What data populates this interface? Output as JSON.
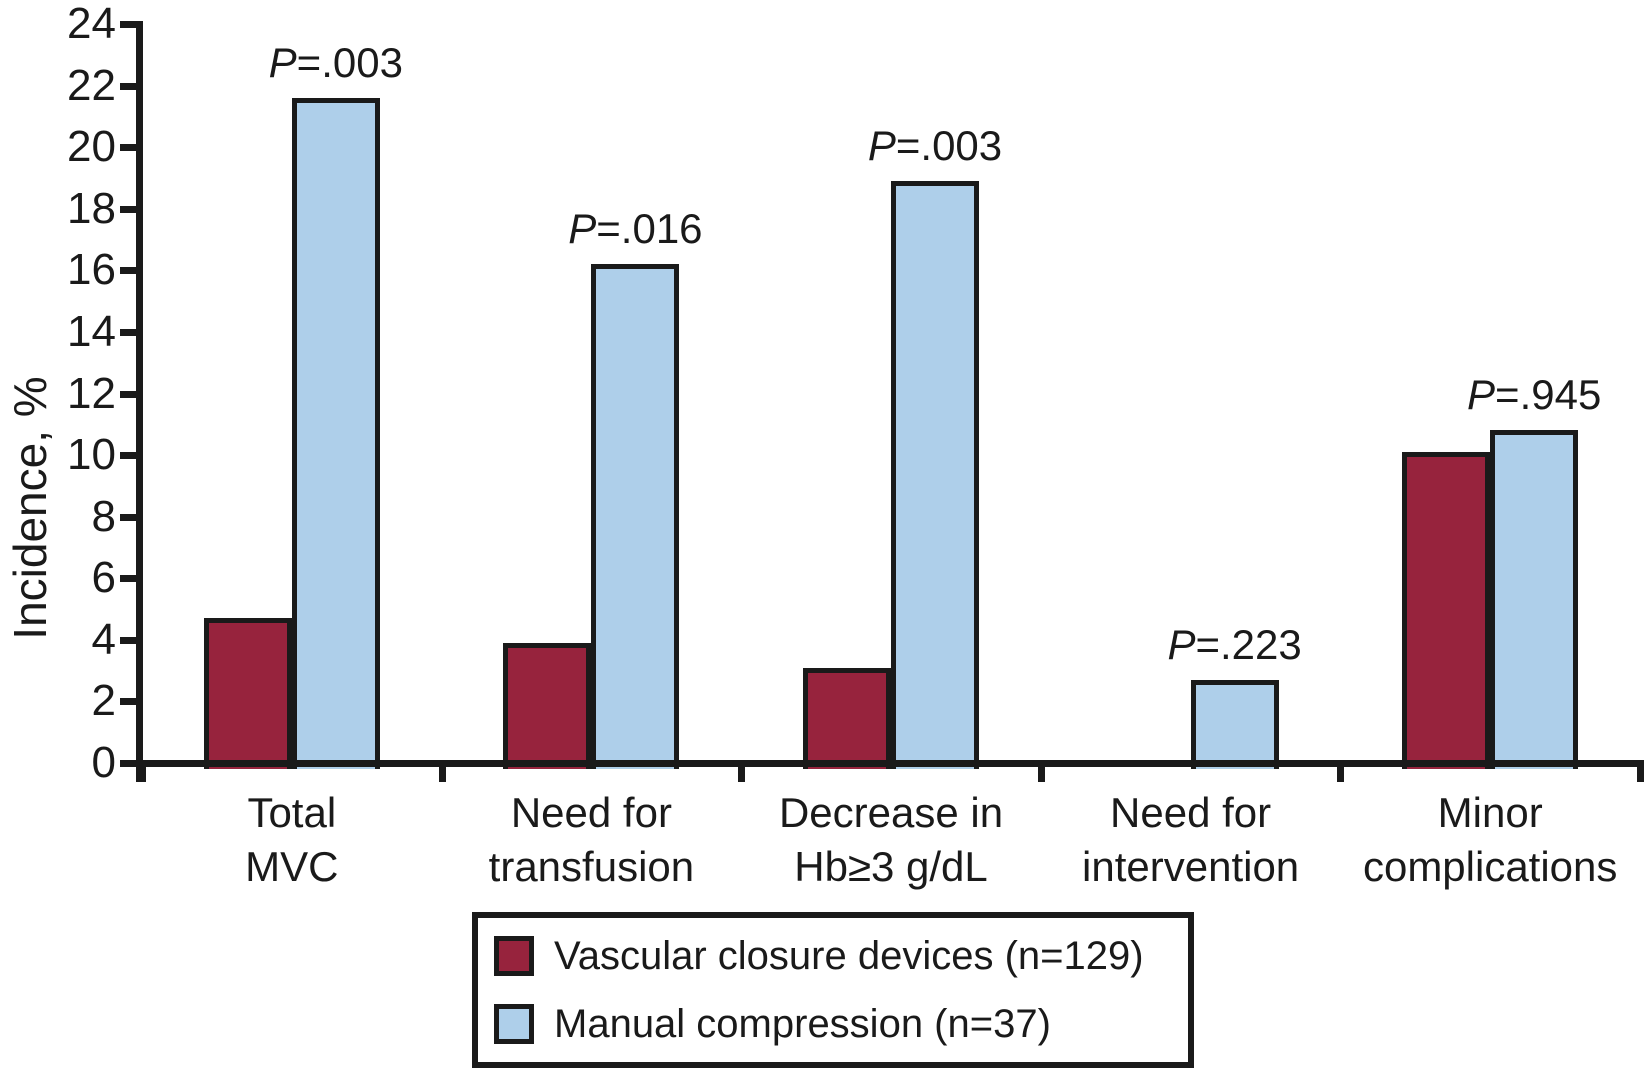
{
  "chart_data": {
    "type": "bar",
    "title": "",
    "ylabel": "Incidence, %",
    "xlabel": "",
    "ylim": [
      0,
      24
    ],
    "y_ticks": [
      0,
      2,
      4,
      6,
      8,
      10,
      12,
      14,
      16,
      18,
      20,
      22,
      24
    ],
    "grid": false,
    "legend_position": "bottom",
    "categories": [
      {
        "label": "Total MVC",
        "lines": [
          "Total",
          "MVC"
        ],
        "p_symbol": "P",
        "p_value": "=.003"
      },
      {
        "label": "Need for transfusion",
        "lines": [
          "Need for",
          "transfusion"
        ],
        "p_symbol": "P",
        "p_value": "=.016"
      },
      {
        "label": "Decrease in Hb≥3 g/dL",
        "lines": [
          "Decrease in",
          "Hb≥3 g/dL"
        ],
        "p_symbol": "P",
        "p_value": "=.003"
      },
      {
        "label": "Need for intervention",
        "lines": [
          "Need for",
          "intervention"
        ],
        "p_symbol": "P",
        "p_value": "=.223"
      },
      {
        "label": "Minor complications",
        "lines": [
          "Minor",
          "complications"
        ],
        "p_symbol": "P",
        "p_value": "=.945"
      }
    ],
    "series": [
      {
        "name": "Vascular closure devices (n=129)",
        "color": "#97233D",
        "values": [
          4.7,
          3.9,
          3.1,
          0,
          10.1
        ]
      },
      {
        "name": "Manual compression (n=37)",
        "color": "#AECFEA",
        "values": [
          21.6,
          16.2,
          18.9,
          2.7,
          10.8
        ]
      }
    ]
  },
  "colors": {
    "axis": "#1a1a1a",
    "background": "#ffffff",
    "vcd_red": "#97233D",
    "mc_blue": "#AECFEA"
  }
}
